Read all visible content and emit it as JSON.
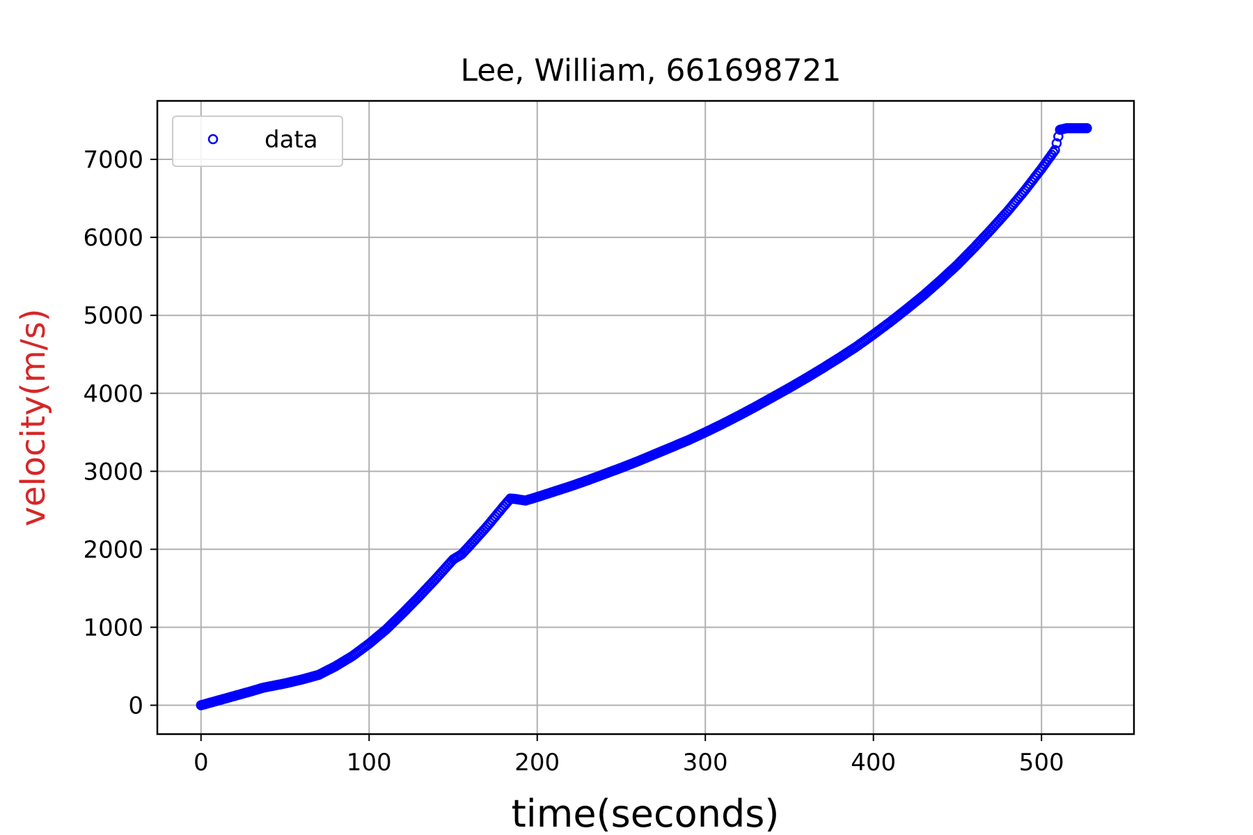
{
  "chart_data": {
    "type": "scatter",
    "title": "Lee, William, 661698721",
    "xlabel": "time(seconds)",
    "ylabel": "velocity(m/s)",
    "xlim": [
      -26,
      555
    ],
    "ylim": [
      -370,
      7750
    ],
    "xticks": [
      0,
      100,
      200,
      300,
      400,
      500
    ],
    "yticks": [
      0,
      1000,
      2000,
      3000,
      4000,
      5000,
      6000,
      7000
    ],
    "xtick_labels": [
      "0",
      "100",
      "200",
      "300",
      "400",
      "500"
    ],
    "ytick_labels": [
      "0",
      "1000",
      "2000",
      "3000",
      "4000",
      "5000",
      "6000",
      "7000"
    ],
    "grid": true,
    "legend": {
      "placement": "upper-left",
      "entries": [
        "data"
      ]
    },
    "colors": {
      "marker": "#0000ff",
      "ylabel": "#d62728",
      "grid": "#b0b0b0"
    },
    "series": [
      {
        "name": "data",
        "marker": "open-circle",
        "x": [
          0,
          10,
          20,
          30,
          37,
          50,
          60,
          70,
          80,
          90,
          100,
          110,
          120,
          130,
          140,
          150,
          155,
          160,
          170,
          180,
          184,
          187,
          193,
          200,
          210,
          220,
          230,
          240,
          250,
          260,
          270,
          280,
          290,
          300,
          310,
          320,
          330,
          340,
          350,
          360,
          370,
          380,
          390,
          400,
          410,
          420,
          430,
          440,
          450,
          460,
          470,
          480,
          490,
          500,
          508,
          511,
          515,
          520,
          527
        ],
        "y": [
          0,
          60,
          120,
          180,
          225,
          280,
          330,
          390,
          500,
          630,
          790,
          970,
          1180,
          1400,
          1630,
          1870,
          1935,
          2050,
          2290,
          2550,
          2650,
          2645,
          2625,
          2670,
          2740,
          2810,
          2885,
          2965,
          3045,
          3130,
          3220,
          3310,
          3400,
          3500,
          3605,
          3715,
          3830,
          3950,
          4070,
          4195,
          4325,
          4460,
          4600,
          4755,
          4915,
          5085,
          5260,
          5450,
          5650,
          5870,
          6100,
          6340,
          6600,
          6880,
          7120,
          7380,
          7400,
          7400,
          7400
        ]
      }
    ]
  }
}
